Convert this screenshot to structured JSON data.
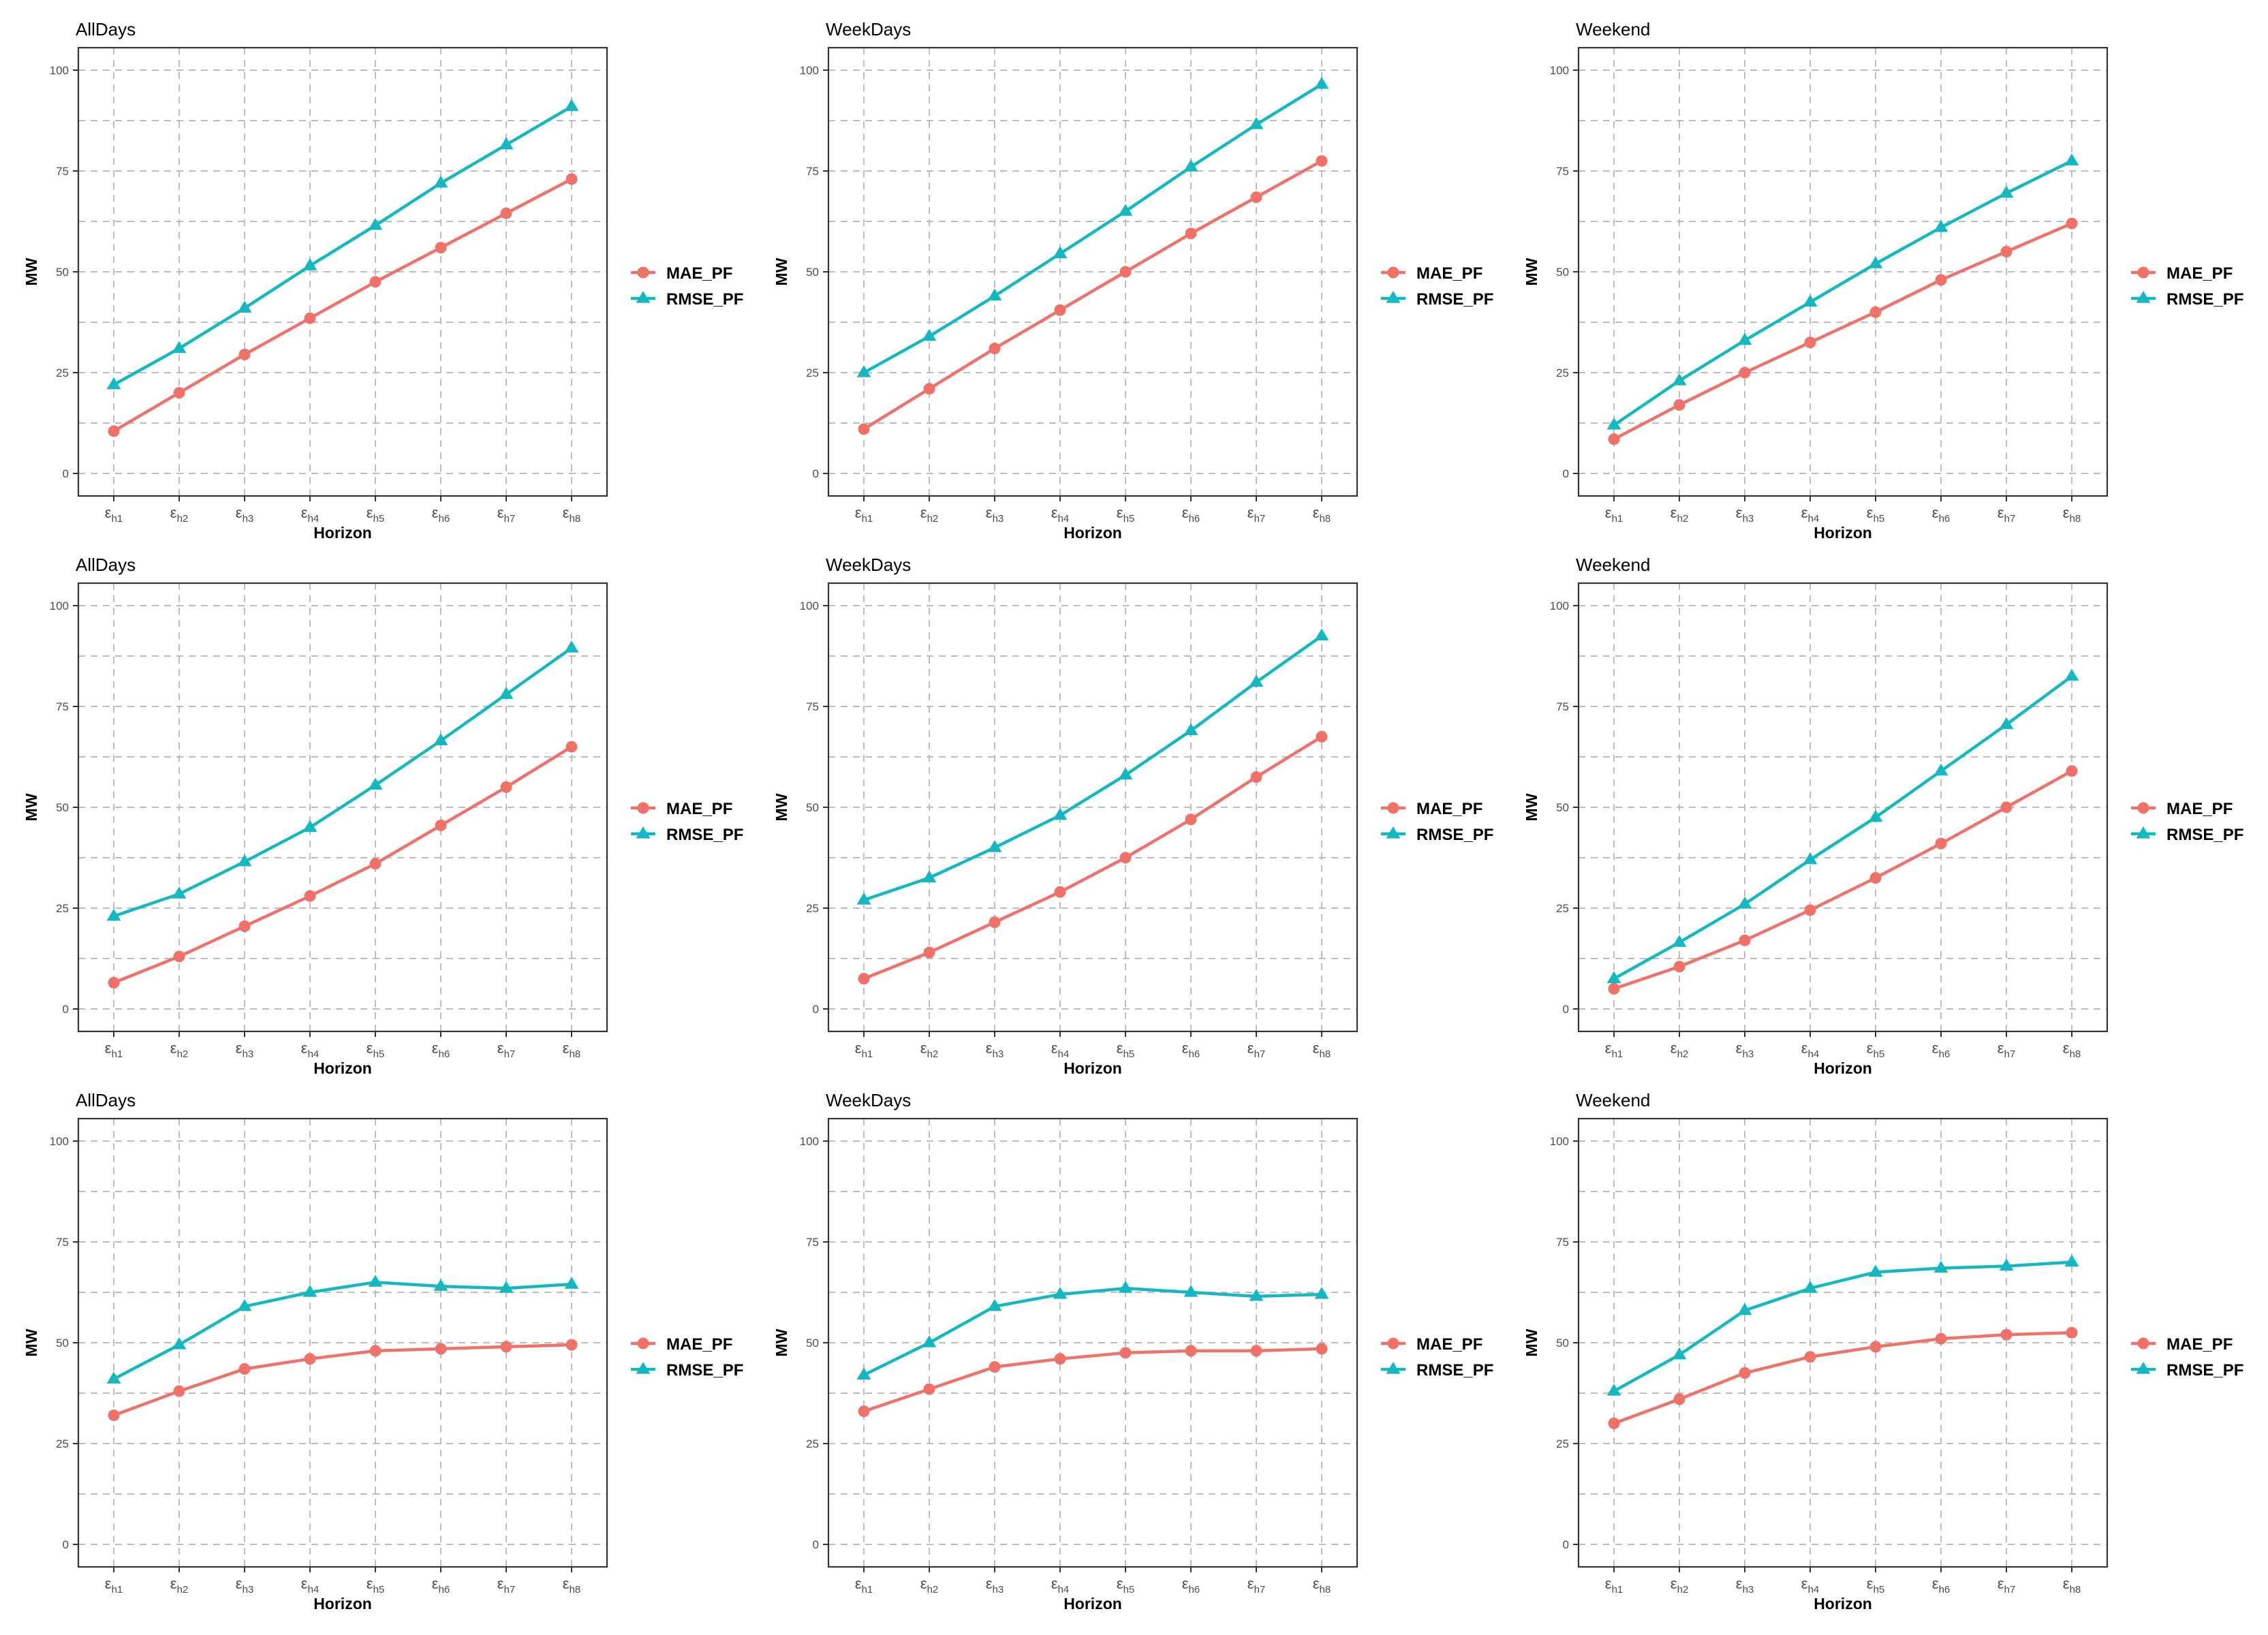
{
  "colors": {
    "MAE_PF": "#f07167",
    "RMSE_PF": "#14b8c0",
    "grid": "#bdbdbd",
    "frame": "#333333"
  },
  "chart_data": [
    {
      "type": "line",
      "title": "AllDays",
      "xlabel": "Horizon",
      "ylabel": "MW",
      "ylim": [
        0,
        100
      ],
      "yticks": [
        0,
        25,
        50,
        75,
        100
      ],
      "x": [
        "εh1",
        "εh2",
        "εh3",
        "εh4",
        "εh5",
        "εh6",
        "εh7",
        "εh8"
      ],
      "legend_position": "right",
      "grid": "dashed",
      "series": [
        {
          "name": "MAE_PF",
          "values": [
            10.5,
            20,
            29.5,
            38.5,
            47.5,
            56,
            64.5,
            73
          ]
        },
        {
          "name": "RMSE_PF",
          "values": [
            22,
            31,
            41,
            51.5,
            61.5,
            72,
            81.5,
            91
          ]
        }
      ]
    },
    {
      "type": "line",
      "title": "WeekDays",
      "xlabel": "Horizon",
      "ylabel": "MW",
      "ylim": [
        0,
        100
      ],
      "yticks": [
        0,
        25,
        50,
        75,
        100
      ],
      "x": [
        "εh1",
        "εh2",
        "εh3",
        "εh4",
        "εh5",
        "εh6",
        "εh7",
        "εh8"
      ],
      "legend_position": "right",
      "grid": "dashed",
      "series": [
        {
          "name": "MAE_PF",
          "values": [
            11,
            21,
            31,
            40.5,
            50,
            59.5,
            68.5,
            77.5
          ]
        },
        {
          "name": "RMSE_PF",
          "values": [
            25,
            34,
            44,
            54.5,
            65,
            76,
            86.5,
            96.5
          ]
        }
      ]
    },
    {
      "type": "line",
      "title": "Weekend",
      "xlabel": "Horizon",
      "ylabel": "MW",
      "ylim": [
        0,
        100
      ],
      "yticks": [
        0,
        25,
        50,
        75,
        100
      ],
      "x": [
        "εh1",
        "εh2",
        "εh3",
        "εh4",
        "εh5",
        "εh6",
        "εh7",
        "εh8"
      ],
      "legend_position": "right",
      "grid": "dashed",
      "series": [
        {
          "name": "MAE_PF",
          "values": [
            8.5,
            17,
            25,
            32.5,
            40,
            48,
            55,
            62
          ]
        },
        {
          "name": "RMSE_PF",
          "values": [
            12,
            23,
            33,
            42.5,
            52,
            61,
            69.5,
            77.5
          ]
        }
      ]
    },
    {
      "type": "line",
      "title": "AllDays",
      "xlabel": "Horizon",
      "ylabel": "MW",
      "ylim": [
        0,
        100
      ],
      "yticks": [
        0,
        25,
        50,
        75,
        100
      ],
      "x": [
        "εh1",
        "εh2",
        "εh3",
        "εh4",
        "εh5",
        "εh6",
        "εh7",
        "εh8"
      ],
      "legend_position": "right",
      "grid": "dashed",
      "series": [
        {
          "name": "MAE_PF",
          "values": [
            6.5,
            13,
            20.5,
            28,
            36,
            45.5,
            55,
            65
          ]
        },
        {
          "name": "RMSE_PF",
          "values": [
            23,
            28.5,
            36.5,
            45,
            55.5,
            66.5,
            78,
            89.5
          ]
        }
      ]
    },
    {
      "type": "line",
      "title": "WeekDays",
      "xlabel": "Horizon",
      "ylabel": "MW",
      "ylim": [
        0,
        100
      ],
      "yticks": [
        0,
        25,
        50,
        75,
        100
      ],
      "x": [
        "εh1",
        "εh2",
        "εh3",
        "εh4",
        "εh5",
        "εh6",
        "εh7",
        "εh8"
      ],
      "legend_position": "right",
      "grid": "dashed",
      "series": [
        {
          "name": "MAE_PF",
          "values": [
            7.5,
            14,
            21.5,
            29,
            37.5,
            47,
            57.5,
            67.5
          ]
        },
        {
          "name": "RMSE_PF",
          "values": [
            27,
            32.5,
            40,
            48,
            58,
            69,
            81,
            92.5
          ]
        }
      ]
    },
    {
      "type": "line",
      "title": "Weekend",
      "xlabel": "Horizon",
      "ylabel": "MW",
      "ylim": [
        0,
        100
      ],
      "yticks": [
        0,
        25,
        50,
        75,
        100
      ],
      "x": [
        "εh1",
        "εh2",
        "εh3",
        "εh4",
        "εh5",
        "εh6",
        "εh7",
        "εh8"
      ],
      "legend_position": "right",
      "grid": "dashed",
      "series": [
        {
          "name": "MAE_PF",
          "values": [
            5,
            10.5,
            17,
            24.5,
            32.5,
            41,
            50,
            59
          ]
        },
        {
          "name": "RMSE_PF",
          "values": [
            7.5,
            16.5,
            26,
            37,
            47.5,
            59,
            70.5,
            82.5
          ]
        }
      ]
    },
    {
      "type": "line",
      "title": "AllDays",
      "xlabel": "Horizon",
      "ylabel": "MW",
      "ylim": [
        0,
        100
      ],
      "yticks": [
        0,
        25,
        50,
        75,
        100
      ],
      "x": [
        "εh1",
        "εh2",
        "εh3",
        "εh4",
        "εh5",
        "εh6",
        "εh7",
        "εh8"
      ],
      "legend_position": "right",
      "grid": "dashed",
      "series": [
        {
          "name": "MAE_PF",
          "values": [
            32,
            38,
            43.5,
            46,
            48,
            48.5,
            49,
            49.5
          ]
        },
        {
          "name": "RMSE_PF",
          "values": [
            41,
            49.5,
            59,
            62.5,
            65,
            64,
            63.5,
            64.5
          ]
        }
      ]
    },
    {
      "type": "line",
      "title": "WeekDays",
      "xlabel": "Horizon",
      "ylabel": "MW",
      "ylim": [
        0,
        100
      ],
      "yticks": [
        0,
        25,
        50,
        75,
        100
      ],
      "x": [
        "εh1",
        "εh2",
        "εh3",
        "εh4",
        "εh5",
        "εh6",
        "εh7",
        "εh8"
      ],
      "legend_position": "right",
      "grid": "dashed",
      "series": [
        {
          "name": "MAE_PF",
          "values": [
            33,
            38.5,
            44,
            46,
            47.5,
            48,
            48,
            48.5
          ]
        },
        {
          "name": "RMSE_PF",
          "values": [
            42,
            50,
            59,
            62,
            63.5,
            62.5,
            61.5,
            62
          ]
        }
      ]
    },
    {
      "type": "line",
      "title": "Weekend",
      "xlabel": "Horizon",
      "ylabel": "MW",
      "ylim": [
        0,
        100
      ],
      "yticks": [
        0,
        25,
        50,
        75,
        100
      ],
      "x": [
        "εh1",
        "εh2",
        "εh3",
        "εh4",
        "εh5",
        "εh6",
        "εh7",
        "εh8"
      ],
      "legend_position": "right",
      "grid": "dashed",
      "series": [
        {
          "name": "MAE_PF",
          "values": [
            30,
            36,
            42.5,
            46.5,
            49,
            51,
            52,
            52.5
          ]
        },
        {
          "name": "RMSE_PF",
          "values": [
            38,
            47,
            58,
            63.5,
            67.5,
            68.5,
            69,
            70
          ]
        }
      ]
    }
  ]
}
